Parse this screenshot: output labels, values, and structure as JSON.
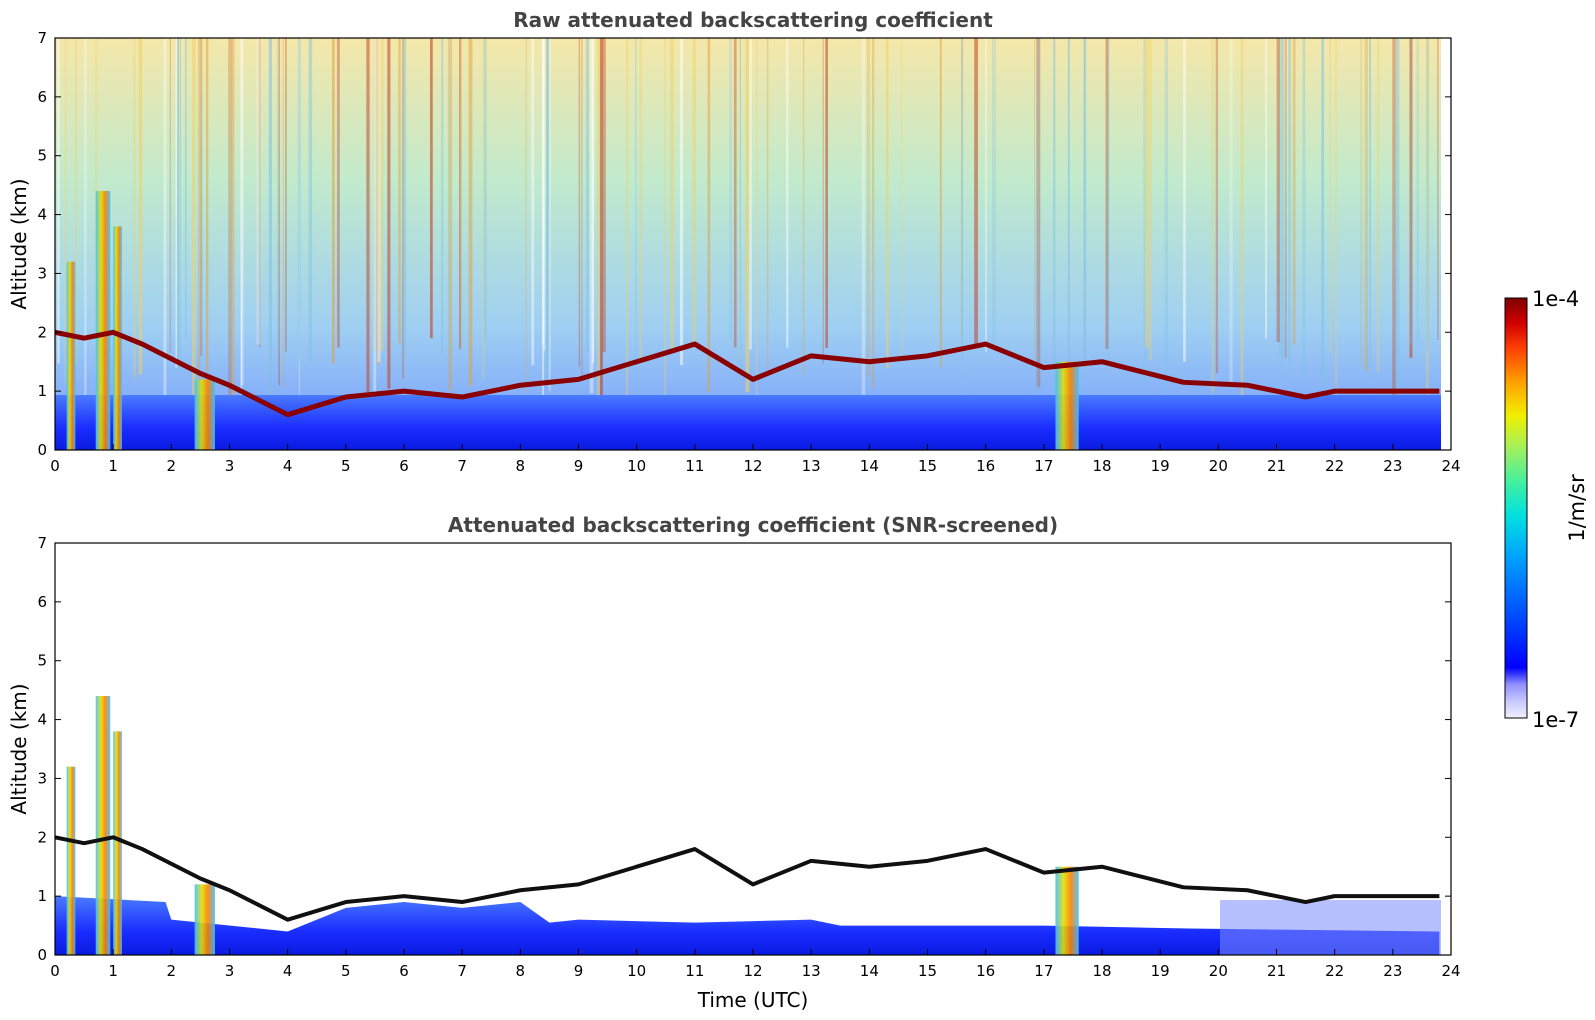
{
  "chart_data": [
    {
      "type": "heatmap",
      "title": "Raw attenuated backscattering coefficient",
      "xlabel": "",
      "ylabel": "Altitude (km)",
      "xlim": [
        0,
        24
      ],
      "ylim": [
        0,
        7
      ],
      "xticks": [
        "0",
        "1",
        "2",
        "3",
        "4",
        "5",
        "6",
        "7",
        "8",
        "9",
        "10",
        "11",
        "12",
        "13",
        "14",
        "15",
        "16",
        "17",
        "18",
        "19",
        "20",
        "21",
        "22",
        "23",
        "24"
      ],
      "yticks": [
        "0",
        "1",
        "2",
        "3",
        "4",
        "5",
        "6",
        "7"
      ],
      "data_end_hour": 23.8,
      "cloud_layer_km": [
        {
          "t": 0.0,
          "z": 2.0
        },
        {
          "t": 0.5,
          "z": 1.9
        },
        {
          "t": 1.0,
          "z": 2.0
        },
        {
          "t": 1.5,
          "z": 1.8
        },
        {
          "t": 2.5,
          "z": 1.3
        },
        {
          "t": 3.0,
          "z": 1.1
        },
        {
          "t": 4.0,
          "z": 0.6
        },
        {
          "t": 5.0,
          "z": 0.9
        },
        {
          "t": 6.0,
          "z": 1.0
        },
        {
          "t": 7.0,
          "z": 0.9
        },
        {
          "t": 8.0,
          "z": 1.1
        },
        {
          "t": 9.0,
          "z": 1.2
        },
        {
          "t": 10.0,
          "z": 1.5
        },
        {
          "t": 11.0,
          "z": 1.8
        },
        {
          "t": 12.0,
          "z": 1.2
        },
        {
          "t": 13.0,
          "z": 1.6
        },
        {
          "t": 14.0,
          "z": 1.5
        },
        {
          "t": 15.0,
          "z": 1.6
        },
        {
          "t": 16.0,
          "z": 1.8
        },
        {
          "t": 17.0,
          "z": 1.4
        },
        {
          "t": 18.0,
          "z": 1.5
        },
        {
          "t": 18.6,
          "z": 1.35
        },
        {
          "t": 19.4,
          "z": 1.15
        },
        {
          "t": 20.5,
          "z": 1.1
        },
        {
          "t": 21.5,
          "z": 0.9
        },
        {
          "t": 22.0,
          "z": 1.0
        },
        {
          "t": 23.8,
          "z": 1.0
        }
      ]
    },
    {
      "type": "heatmap",
      "title": "Attenuated backscattering coefficient (SNR-screened)",
      "xlabel": "Time (UTC)",
      "ylabel": "Altitude (km)",
      "xlim": [
        0,
        24
      ],
      "ylim": [
        0,
        7
      ],
      "xticks": [
        "0",
        "1",
        "2",
        "3",
        "4",
        "5",
        "6",
        "7",
        "8",
        "9",
        "10",
        "11",
        "12",
        "13",
        "14",
        "15",
        "16",
        "17",
        "18",
        "19",
        "20",
        "21",
        "22",
        "23",
        "24"
      ],
      "yticks": [
        "0",
        "1",
        "2",
        "3",
        "4",
        "5",
        "6",
        "7"
      ]
    }
  ],
  "colorbar": {
    "max_label": "1e-4",
    "min_label": "1e-7",
    "unit_label": "1/m/sr",
    "colors": [
      "#f0f0ff",
      "#c8c8ff",
      "#9090ff",
      "#0000ff",
      "#0050ff",
      "#00a0ff",
      "#00e0e0",
      "#40f0a0",
      "#a0f060",
      "#f0f000",
      "#ffa000",
      "#ff4000",
      "#d00000",
      "#800000"
    ]
  }
}
